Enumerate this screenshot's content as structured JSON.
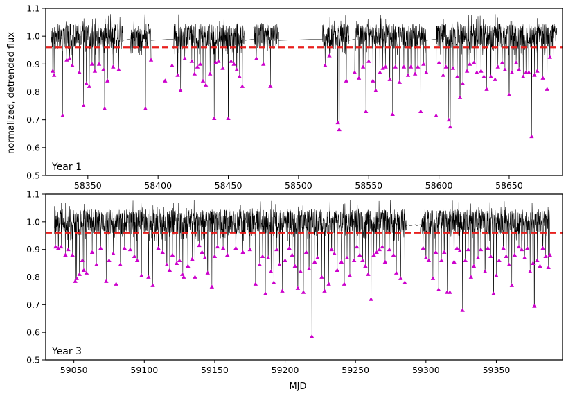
{
  "figure": {
    "ylabel": "normalized, detrended flux",
    "xlabel": "MJD"
  },
  "chart_data": [
    {
      "type": "line",
      "label": "Year 1",
      "xlim": [
        58320,
        58688
      ],
      "ylim": [
        0.5,
        1.1
      ],
      "xticks": [
        58350,
        58400,
        58450,
        58500,
        58550,
        58600,
        58650
      ],
      "yticks": [
        0.5,
        0.6,
        0.7,
        0.8,
        0.9,
        1.0,
        1.1
      ],
      "threshold": 0.96,
      "colors": {
        "flux": "#000000",
        "threshold": "#e8201e",
        "markers": "#cc00cc"
      },
      "segments": [
        [
          58324,
          58375
        ],
        [
          58380,
          58395
        ],
        [
          58411,
          58462
        ],
        [
          58468,
          58486
        ],
        [
          58517,
          58536
        ],
        [
          58540,
          58591
        ],
        [
          58598,
          58684
        ]
      ],
      "gap_links": [
        [
          58375,
          58380
        ],
        [
          58395,
          58411
        ],
        [
          58462,
          58468
        ],
        [
          58486,
          58517
        ],
        [
          58536,
          58540
        ],
        [
          58591,
          58598
        ]
      ],
      "dips": [
        {
          "x": 58325,
          "y": 0.875
        },
        {
          "x": 58326,
          "y": 0.86
        },
        {
          "x": 58332,
          "y": 0.715
        },
        {
          "x": 58335,
          "y": 0.915
        },
        {
          "x": 58337,
          "y": 0.92
        },
        {
          "x": 58339,
          "y": 0.895
        },
        {
          "x": 58344,
          "y": 0.87
        },
        {
          "x": 58347,
          "y": 0.75
        },
        {
          "x": 58349,
          "y": 0.83
        },
        {
          "x": 58351,
          "y": 0.82
        },
        {
          "x": 58353,
          "y": 0.9
        },
        {
          "x": 58355,
          "y": 0.875
        },
        {
          "x": 58358,
          "y": 0.9
        },
        {
          "x": 58361,
          "y": 0.88
        },
        {
          "x": 58362,
          "y": 0.74
        },
        {
          "x": 58364,
          "y": 0.84
        },
        {
          "x": 58368,
          "y": 0.89
        },
        {
          "x": 58372,
          "y": 0.88
        },
        {
          "x": 58391,
          "y": 0.74
        },
        {
          "x": 58395,
          "y": 0.915
        },
        {
          "x": 58405,
          "y": 0.84
        },
        {
          "x": 58410,
          "y": 0.895
        },
        {
          "x": 58414,
          "y": 0.86
        },
        {
          "x": 58416,
          "y": 0.805
        },
        {
          "x": 58419,
          "y": 0.92
        },
        {
          "x": 58424,
          "y": 0.91
        },
        {
          "x": 58426,
          "y": 0.865
        },
        {
          "x": 58428,
          "y": 0.89
        },
        {
          "x": 58430,
          "y": 0.9
        },
        {
          "x": 58432,
          "y": 0.84
        },
        {
          "x": 58434,
          "y": 0.825
        },
        {
          "x": 58437,
          "y": 0.865
        },
        {
          "x": 58440,
          "y": 0.705
        },
        {
          "x": 58441,
          "y": 0.905
        },
        {
          "x": 58443,
          "y": 0.91
        },
        {
          "x": 58446,
          "y": 0.885
        },
        {
          "x": 58450,
          "y": 0.705
        },
        {
          "x": 58452,
          "y": 0.91
        },
        {
          "x": 58454,
          "y": 0.9
        },
        {
          "x": 58456,
          "y": 0.88
        },
        {
          "x": 58458,
          "y": 0.855
        },
        {
          "x": 58460,
          "y": 0.82
        },
        {
          "x": 58470,
          "y": 0.92
        },
        {
          "x": 58475,
          "y": 0.9
        },
        {
          "x": 58480,
          "y": 0.82
        },
        {
          "x": 58519,
          "y": 0.895
        },
        {
          "x": 58522,
          "y": 0.93
        },
        {
          "x": 58528,
          "y": 0.69
        },
        {
          "x": 58529,
          "y": 0.665
        },
        {
          "x": 58534,
          "y": 0.84
        },
        {
          "x": 58540,
          "y": 0.87
        },
        {
          "x": 58543,
          "y": 0.85
        },
        {
          "x": 58546,
          "y": 0.89
        },
        {
          "x": 58548,
          "y": 0.73
        },
        {
          "x": 58550,
          "y": 0.91
        },
        {
          "x": 58553,
          "y": 0.84
        },
        {
          "x": 58555,
          "y": 0.805
        },
        {
          "x": 58558,
          "y": 0.87
        },
        {
          "x": 58560,
          "y": 0.885
        },
        {
          "x": 58562,
          "y": 0.89
        },
        {
          "x": 58565,
          "y": 0.845
        },
        {
          "x": 58567,
          "y": 0.72
        },
        {
          "x": 58569,
          "y": 0.89
        },
        {
          "x": 58572,
          "y": 0.835
        },
        {
          "x": 58575,
          "y": 0.89
        },
        {
          "x": 58578,
          "y": 0.86
        },
        {
          "x": 58580,
          "y": 0.89
        },
        {
          "x": 58583,
          "y": 0.865
        },
        {
          "x": 58585,
          "y": 0.89
        },
        {
          "x": 58587,
          "y": 0.73
        },
        {
          "x": 58589,
          "y": 0.9
        },
        {
          "x": 58591,
          "y": 0.87
        },
        {
          "x": 58598,
          "y": 0.715
        },
        {
          "x": 58600,
          "y": 0.905
        },
        {
          "x": 58603,
          "y": 0.86
        },
        {
          "x": 58605,
          "y": 0.89
        },
        {
          "x": 58607,
          "y": 0.7
        },
        {
          "x": 58608,
          "y": 0.675
        },
        {
          "x": 58610,
          "y": 0.885
        },
        {
          "x": 58613,
          "y": 0.855
        },
        {
          "x": 58615,
          "y": 0.78
        },
        {
          "x": 58617,
          "y": 0.83
        },
        {
          "x": 58620,
          "y": 0.875
        },
        {
          "x": 58622,
          "y": 0.9
        },
        {
          "x": 58625,
          "y": 0.905
        },
        {
          "x": 58627,
          "y": 0.87
        },
        {
          "x": 58630,
          "y": 0.875
        },
        {
          "x": 58632,
          "y": 0.855
        },
        {
          "x": 58634,
          "y": 0.81
        },
        {
          "x": 58637,
          "y": 0.855
        },
        {
          "x": 58640,
          "y": 0.845
        },
        {
          "x": 58642,
          "y": 0.89
        },
        {
          "x": 58645,
          "y": 0.905
        },
        {
          "x": 58647,
          "y": 0.88
        },
        {
          "x": 58650,
          "y": 0.79
        },
        {
          "x": 58652,
          "y": 0.87
        },
        {
          "x": 58655,
          "y": 0.905
        },
        {
          "x": 58657,
          "y": 0.88
        },
        {
          "x": 58660,
          "y": 0.855
        },
        {
          "x": 58662,
          "y": 0.87
        },
        {
          "x": 58664,
          "y": 0.87
        },
        {
          "x": 58666,
          "y": 0.64
        },
        {
          "x": 58668,
          "y": 0.86
        },
        {
          "x": 58670,
          "y": 0.875
        },
        {
          "x": 58674,
          "y": 0.85
        },
        {
          "x": 58677,
          "y": 0.81
        },
        {
          "x": 58679,
          "y": 0.925
        }
      ]
    },
    {
      "type": "line",
      "label": "Year 3",
      "xlim": [
        59030,
        59397
      ],
      "ylim": [
        0.5,
        1.1
      ],
      "xticks": [
        59050,
        59100,
        59150,
        59200,
        59250,
        59300,
        59350
      ],
      "yticks": [
        0.5,
        0.6,
        0.7,
        0.8,
        0.9,
        1.0,
        1.1
      ],
      "threshold": 0.96,
      "colors": {
        "flux": "#000000",
        "threshold": "#e8201e",
        "markers": "#cc00cc"
      },
      "segments": [
        [
          59036,
          59178
        ],
        [
          59178,
          59230
        ],
        [
          59230,
          59286
        ],
        [
          59296,
          59388
        ]
      ],
      "gap_links": [
        [
          59286,
          59288
        ],
        [
          59288,
          59293
        ],
        [
          59293,
          59296
        ]
      ],
      "spikes": [
        {
          "x": 59288,
          "y_low": 0.5,
          "y_high": 1.1
        },
        {
          "x": 59293,
          "y_low": 0.5,
          "y_high": 1.1
        }
      ],
      "dips": [
        {
          "x": 59037,
          "y": 0.91
        },
        {
          "x": 59039,
          "y": 0.905
        },
        {
          "x": 59041,
          "y": 0.91
        },
        {
          "x": 59044,
          "y": 0.88
        },
        {
          "x": 59046,
          "y": 0.9
        },
        {
          "x": 59049,
          "y": 0.88
        },
        {
          "x": 59051,
          "y": 0.785
        },
        {
          "x": 59052,
          "y": 0.795
        },
        {
          "x": 59054,
          "y": 0.81
        },
        {
          "x": 59056,
          "y": 0.86
        },
        {
          "x": 59057,
          "y": 0.825
        },
        {
          "x": 59059,
          "y": 0.815
        },
        {
          "x": 59063,
          "y": 0.89
        },
        {
          "x": 59066,
          "y": 0.845
        },
        {
          "x": 59069,
          "y": 0.905
        },
        {
          "x": 59073,
          "y": 0.785
        },
        {
          "x": 59075,
          "y": 0.86
        },
        {
          "x": 59078,
          "y": 0.885
        },
        {
          "x": 59080,
          "y": 0.775
        },
        {
          "x": 59083,
          "y": 0.845
        },
        {
          "x": 59086,
          "y": 0.905
        },
        {
          "x": 59090,
          "y": 0.9
        },
        {
          "x": 59093,
          "y": 0.875
        },
        {
          "x": 59095,
          "y": 0.86
        },
        {
          "x": 59098,
          "y": 0.805
        },
        {
          "x": 59103,
          "y": 0.8
        },
        {
          "x": 59106,
          "y": 0.77
        },
        {
          "x": 59110,
          "y": 0.905
        },
        {
          "x": 59113,
          "y": 0.89
        },
        {
          "x": 59116,
          "y": 0.845
        },
        {
          "x": 59118,
          "y": 0.825
        },
        {
          "x": 59120,
          "y": 0.88
        },
        {
          "x": 59123,
          "y": 0.85
        },
        {
          "x": 59125,
          "y": 0.86
        },
        {
          "x": 59127,
          "y": 0.81
        },
        {
          "x": 59128,
          "y": 0.8
        },
        {
          "x": 59131,
          "y": 0.84
        },
        {
          "x": 59134,
          "y": 0.865
        },
        {
          "x": 59136,
          "y": 0.8
        },
        {
          "x": 59139,
          "y": 0.915
        },
        {
          "x": 59141,
          "y": 0.89
        },
        {
          "x": 59143,
          "y": 0.87
        },
        {
          "x": 59145,
          "y": 0.815
        },
        {
          "x": 59148,
          "y": 0.765
        },
        {
          "x": 59150,
          "y": 0.875
        },
        {
          "x": 59152,
          "y": 0.91
        },
        {
          "x": 59156,
          "y": 0.905
        },
        {
          "x": 59159,
          "y": 0.88
        },
        {
          "x": 59165,
          "y": 0.905
        },
        {
          "x": 59170,
          "y": 0.89
        },
        {
          "x": 59175,
          "y": 0.9
        },
        {
          "x": 59179,
          "y": 0.775
        },
        {
          "x": 59182,
          "y": 0.845
        },
        {
          "x": 59184,
          "y": 0.875
        },
        {
          "x": 59186,
          "y": 0.74
        },
        {
          "x": 59188,
          "y": 0.87
        },
        {
          "x": 59190,
          "y": 0.82
        },
        {
          "x": 59192,
          "y": 0.78
        },
        {
          "x": 59194,
          "y": 0.9
        },
        {
          "x": 59196,
          "y": 0.845
        },
        {
          "x": 59198,
          "y": 0.75
        },
        {
          "x": 59200,
          "y": 0.86
        },
        {
          "x": 59203,
          "y": 0.905
        },
        {
          "x": 59205,
          "y": 0.88
        },
        {
          "x": 59207,
          "y": 0.84
        },
        {
          "x": 59209,
          "y": 0.76
        },
        {
          "x": 59211,
          "y": 0.82
        },
        {
          "x": 59213,
          "y": 0.745
        },
        {
          "x": 59215,
          "y": 0.89
        },
        {
          "x": 59217,
          "y": 0.83
        },
        {
          "x": 59219,
          "y": 0.585
        },
        {
          "x": 59221,
          "y": 0.855
        },
        {
          "x": 59223,
          "y": 0.87
        },
        {
          "x": 59226,
          "y": 0.8
        },
        {
          "x": 59228,
          "y": 0.75
        },
        {
          "x": 59231,
          "y": 0.775
        },
        {
          "x": 59233,
          "y": 0.9
        },
        {
          "x": 59235,
          "y": 0.885
        },
        {
          "x": 59237,
          "y": 0.825
        },
        {
          "x": 59240,
          "y": 0.855
        },
        {
          "x": 59242,
          "y": 0.775
        },
        {
          "x": 59244,
          "y": 0.87
        },
        {
          "x": 59246,
          "y": 0.805
        },
        {
          "x": 59249,
          "y": 0.86
        },
        {
          "x": 59251,
          "y": 0.91
        },
        {
          "x": 59253,
          "y": 0.88
        },
        {
          "x": 59255,
          "y": 0.86
        },
        {
          "x": 59257,
          "y": 0.84
        },
        {
          "x": 59259,
          "y": 0.81
        },
        {
          "x": 59261,
          "y": 0.72
        },
        {
          "x": 59263,
          "y": 0.88
        },
        {
          "x": 59265,
          "y": 0.89
        },
        {
          "x": 59267,
          "y": 0.9
        },
        {
          "x": 59269,
          "y": 0.91
        },
        {
          "x": 59271,
          "y": 0.855
        },
        {
          "x": 59274,
          "y": 0.9
        },
        {
          "x": 59277,
          "y": 0.88
        },
        {
          "x": 59279,
          "y": 0.815
        },
        {
          "x": 59282,
          "y": 0.795
        },
        {
          "x": 59285,
          "y": 0.78
        },
        {
          "x": 59298,
          "y": 0.905
        },
        {
          "x": 59300,
          "y": 0.87
        },
        {
          "x": 59302,
          "y": 0.86
        },
        {
          "x": 59305,
          "y": 0.795
        },
        {
          "x": 59307,
          "y": 0.89
        },
        {
          "x": 59309,
          "y": 0.755
        },
        {
          "x": 59311,
          "y": 0.86
        },
        {
          "x": 59313,
          "y": 0.89
        },
        {
          "x": 59315,
          "y": 0.745
        },
        {
          "x": 59317,
          "y": 0.745
        },
        {
          "x": 59320,
          "y": 0.855
        },
        {
          "x": 59322,
          "y": 0.905
        },
        {
          "x": 59324,
          "y": 0.895
        },
        {
          "x": 59326,
          "y": 0.68
        },
        {
          "x": 59328,
          "y": 0.86
        },
        {
          "x": 59330,
          "y": 0.9
        },
        {
          "x": 59332,
          "y": 0.8
        },
        {
          "x": 59334,
          "y": 0.84
        },
        {
          "x": 59337,
          "y": 0.87
        },
        {
          "x": 59339,
          "y": 0.9
        },
        {
          "x": 59342,
          "y": 0.82
        },
        {
          "x": 59344,
          "y": 0.905
        },
        {
          "x": 59346,
          "y": 0.875
        },
        {
          "x": 59348,
          "y": 0.74
        },
        {
          "x": 59350,
          "y": 0.805
        },
        {
          "x": 59352,
          "y": 0.86
        },
        {
          "x": 59355,
          "y": 0.905
        },
        {
          "x": 59357,
          "y": 0.875
        },
        {
          "x": 59359,
          "y": 0.845
        },
        {
          "x": 59361,
          "y": 0.77
        },
        {
          "x": 59363,
          "y": 0.88
        },
        {
          "x": 59366,
          "y": 0.91
        },
        {
          "x": 59368,
          "y": 0.9
        },
        {
          "x": 59370,
          "y": 0.87
        },
        {
          "x": 59372,
          "y": 0.905
        },
        {
          "x": 59374,
          "y": 0.82
        },
        {
          "x": 59376,
          "y": 0.85
        },
        {
          "x": 59377,
          "y": 0.695
        },
        {
          "x": 59379,
          "y": 0.86
        },
        {
          "x": 59381,
          "y": 0.84
        },
        {
          "x": 59383,
          "y": 0.905
        },
        {
          "x": 59385,
          "y": 0.875
        },
        {
          "x": 59387,
          "y": 0.835
        },
        {
          "x": 59388,
          "y": 0.88
        }
      ]
    }
  ]
}
